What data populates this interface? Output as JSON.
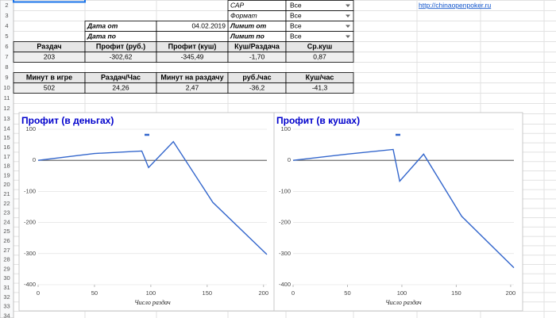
{
  "sheet": {
    "link": "http://chinaopenpoker.ru",
    "row_numbers": [
      2,
      3,
      4,
      5,
      6,
      7,
      8,
      9,
      10,
      11,
      12,
      13,
      14,
      15,
      16,
      17,
      18,
      19,
      20,
      21,
      22,
      23,
      24,
      25,
      26,
      27,
      28,
      29,
      30,
      31,
      32,
      33,
      34
    ],
    "dates": [
      {
        "label": "Дата от",
        "value": "04.02.2019"
      },
      {
        "label": "Дата по"
      }
    ],
    "filters": [
      {
        "label": "САР",
        "value": "Все"
      },
      {
        "label": "Формат",
        "value": "Все"
      },
      {
        "label": "Лимит от",
        "value": "Все"
      },
      {
        "label": "Лимит по",
        "value": "Все"
      }
    ],
    "stats1": {
      "headers": [
        "Раздач",
        "Профит (руб.)",
        "Профит (куш)",
        "Куш/Раздача",
        "Ср.куш"
      ],
      "values": [
        "203",
        "-302,62",
        "-345,49",
        "-1,70",
        "0,87"
      ],
      "colors": [
        "#20124d",
        "#274e13",
        "#274e13",
        "#741b47",
        "#660000"
      ]
    },
    "stats2": {
      "headers": [
        "Минут в игре",
        "Раздач/Час",
        "Минут на раздачу",
        "руб./час",
        "Куш/час"
      ],
      "values": [
        "502",
        "24,26",
        "2,47",
        "-36,2",
        "-41,3"
      ],
      "colors": [
        "#1c4587",
        "#b45f06",
        "#b45f06",
        "#1c4587",
        "#1c4587"
      ]
    }
  },
  "chart_data": [
    {
      "type": "line",
      "title": "Профит (в деньгах)",
      "x_label": "Число раздач",
      "x": [
        0,
        50,
        92,
        98,
        120,
        155,
        203
      ],
      "series": [
        {
          "color": "#3366cc",
          "values": [
            0,
            22,
            30,
            -23,
            60,
            -135,
            -302.62
          ]
        }
      ],
      "xlim": [
        0,
        203
      ],
      "ylim": [
        -400,
        100
      ],
      "xticks": [
        0,
        50,
        100,
        150,
        200
      ],
      "yticks": [
        -400,
        -300,
        -200,
        -100,
        0,
        100
      ],
      "grid": true
    },
    {
      "type": "line",
      "title": "Профит (в кушах)",
      "x_label": "Число раздач",
      "x": [
        0,
        50,
        92,
        98,
        120,
        155,
        203
      ],
      "series": [
        {
          "color": "#3366cc",
          "values": [
            0,
            20,
            35,
            -67,
            20,
            -180,
            -345.49
          ]
        }
      ],
      "xlim": [
        0,
        203
      ],
      "ylim": [
        -400,
        100
      ],
      "xticks": [
        0,
        50,
        100,
        150,
        200
      ],
      "yticks": [
        -400,
        -300,
        -200,
        -100,
        0,
        100
      ],
      "grid": true
    }
  ]
}
